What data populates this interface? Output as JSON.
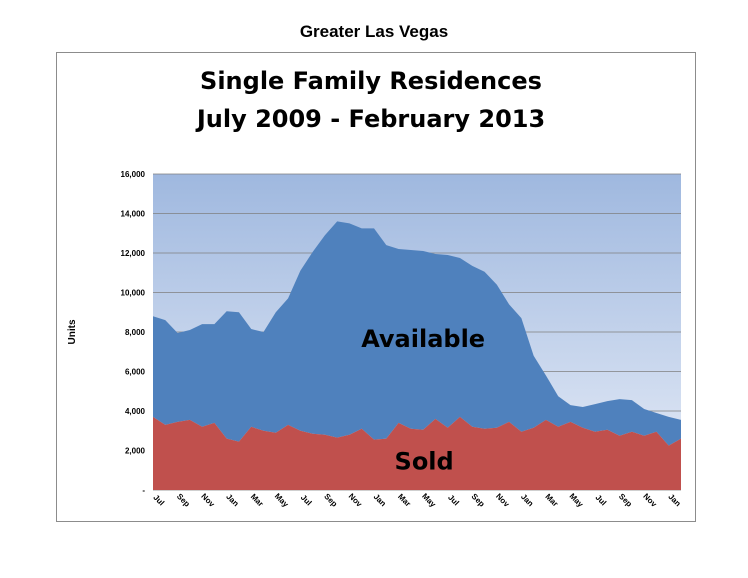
{
  "page_heading": "Greater Las Vegas",
  "colors": {
    "available": "#4f81bd",
    "sold": "#c0504d",
    "plot_bg_top": "#9fb8df",
    "plot_bg_bottom": "#e6ecf7",
    "grid": "#7f7f7f"
  },
  "chart_data": {
    "type": "area",
    "stacked": true,
    "title": [
      "Single Family Residences",
      "July 2009 - February 2013"
    ],
    "ylabel": "Units",
    "xlabel": "",
    "ylim": [
      0,
      16000
    ],
    "yticks": [
      0,
      2000,
      4000,
      6000,
      8000,
      10000,
      12000,
      14000,
      16000
    ],
    "ytick_labels": [
      "-",
      "2,000",
      "4,000",
      "6,000",
      "8,000",
      "10,000",
      "12,000",
      "14,000",
      "16,000"
    ],
    "grid": true,
    "legend": "none",
    "x": [
      "Jul 2009",
      "Aug 2009",
      "Sep 2009",
      "Oct 2009",
      "Nov 2009",
      "Dec 2009",
      "Jan 2010",
      "Feb 2010",
      "Mar 2010",
      "Apr 2010",
      "May 2010",
      "Jun 2010",
      "Jul 2010",
      "Aug 2010",
      "Sep 2010",
      "Oct 2010",
      "Nov 2010",
      "Dec 2010",
      "Jan 2011",
      "Feb 2011",
      "Mar 2011",
      "Apr 2011",
      "May 2011",
      "Jun 2011",
      "Jul 2011",
      "Aug 2011",
      "Sep 2011",
      "Oct 2011",
      "Nov 2011",
      "Dec 2011",
      "Jan 2012",
      "Feb 2012",
      "Mar 2012",
      "Apr 2012",
      "May 2012",
      "Jun 2012",
      "Jul 2012",
      "Aug 2012",
      "Sep 2012",
      "Oct 2012",
      "Nov 2012",
      "Dec 2012",
      "Jan 2013",
      "Feb 2013"
    ],
    "xtick_labels": [
      "Jul",
      "Sep",
      "Nov",
      "Jan",
      "Mar",
      "May",
      "Jul",
      "Sep",
      "Nov",
      "Jan",
      "Mar",
      "May",
      "Jul",
      "Sep",
      "Nov",
      "Jan",
      "Mar",
      "May",
      "Jul",
      "Sep",
      "Nov",
      "Jan"
    ],
    "series": [
      {
        "name": "Sold",
        "values": [
          3700,
          3300,
          3450,
          3550,
          3200,
          3400,
          2600,
          2450,
          3200,
          3000,
          2900,
          3300,
          3000,
          2850,
          2800,
          2650,
          2800,
          3100,
          2550,
          2600,
          3400,
          3100,
          3050,
          3600,
          3150,
          3700,
          3200,
          3100,
          3150,
          3450,
          2950,
          3150,
          3550,
          3200,
          3450,
          3150,
          2950,
          3050,
          2750,
          2950,
          2750,
          2950,
          2250,
          2600
        ],
        "color": "#c0504d"
      },
      {
        "name": "Available",
        "values": [
          5100,
          5300,
          4500,
          4550,
          5200,
          5000,
          6450,
          6550,
          4950,
          5000,
          6100,
          6400,
          8100,
          9200,
          10100,
          10950,
          10700,
          10150,
          10700,
          9800,
          8800,
          9050,
          9050,
          8350,
          8750,
          8050,
          8150,
          7950,
          7250,
          5950,
          5750,
          3650,
          2250,
          1550,
          850,
          1050,
          1400,
          1450,
          1850,
          1600,
          1350,
          950,
          1450,
          950
        ],
        "color": "#4f81bd"
      }
    ],
    "annotations": [
      {
        "text": "Available"
      },
      {
        "text": "Sold"
      }
    ]
  }
}
